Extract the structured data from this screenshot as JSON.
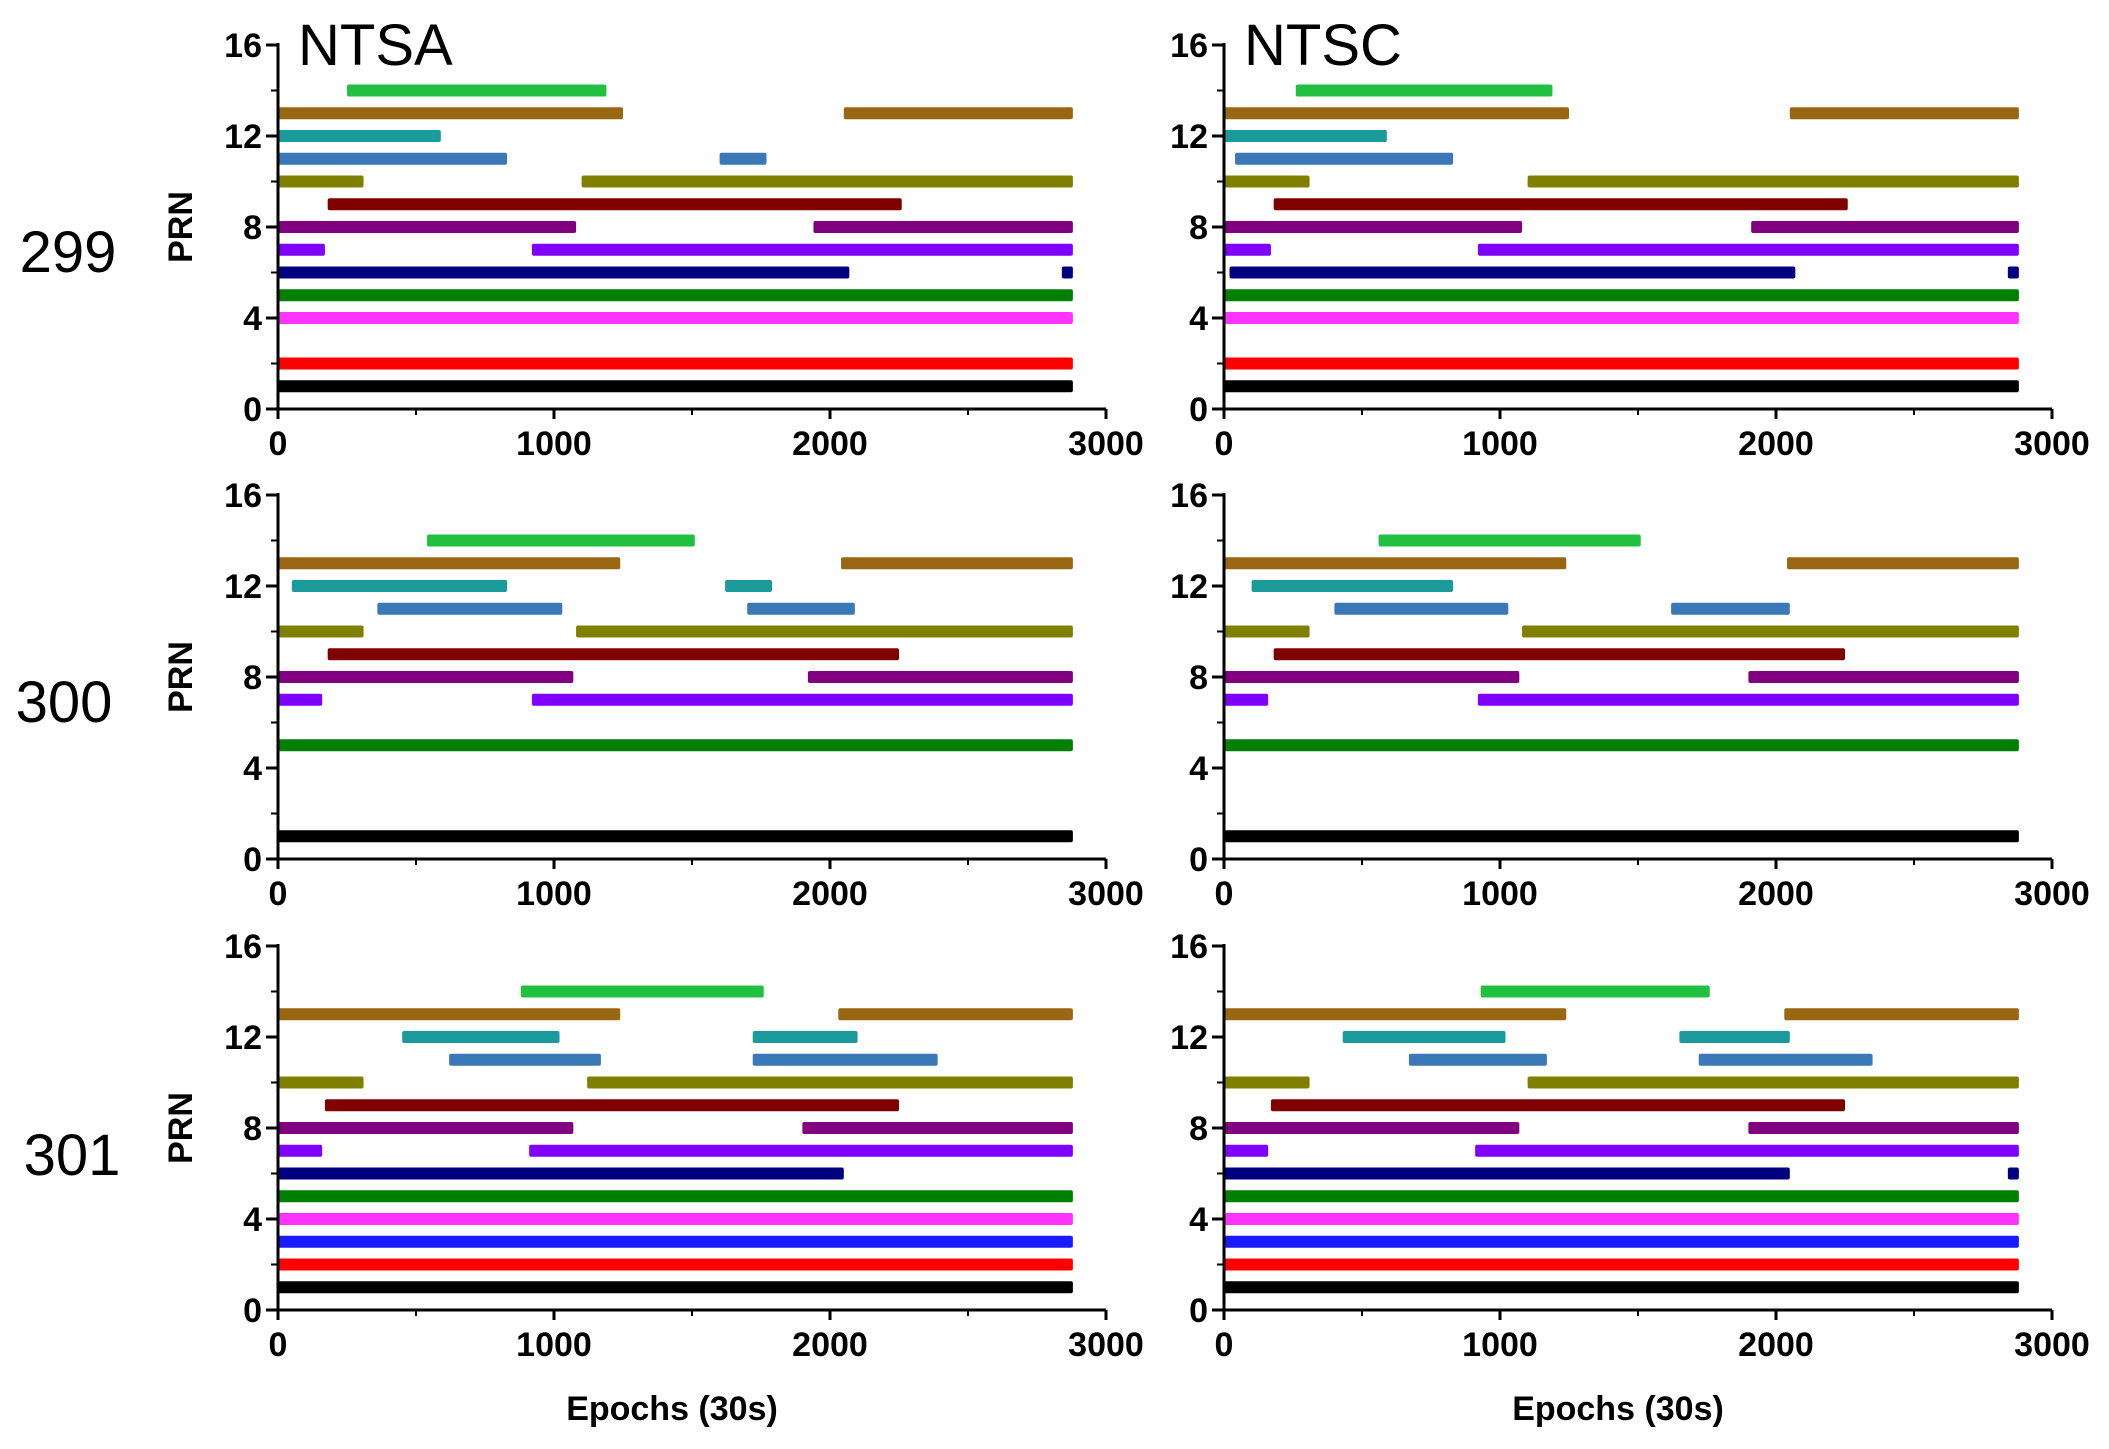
{
  "figure": {
    "row_labels": [
      "299",
      "300",
      "301"
    ],
    "column_titles": [
      "NTSA",
      "NTSC"
    ]
  },
  "prn_colors": {
    "1": "#000000",
    "2": "#ff0000",
    "3": "#1a1aff",
    "4": "#ff33ff",
    "5": "#008000",
    "6": "#000080",
    "7": "#8000ff",
    "8": "#800080",
    "9": "#800000",
    "10": "#808000",
    "11": "#3a78b8",
    "12": "#1a9a9a",
    "13": "#996611",
    "14": "#22c040"
  },
  "chart_data": [
    {
      "type": "timeline",
      "title": "NTSA",
      "row_label": "299",
      "xlabel": "",
      "ylabel": "PRN",
      "xlim": [
        0,
        3000
      ],
      "ylim": [
        0,
        16
      ],
      "xticks": [
        "0",
        "1000",
        "2000",
        "3000"
      ],
      "yticks": [
        "0",
        "4",
        "8",
        "12",
        "16"
      ],
      "series": [
        {
          "prn": 1,
          "segments": [
            [
              0,
              2880
            ]
          ]
        },
        {
          "prn": 2,
          "segments": [
            [
              0,
              2880
            ]
          ]
        },
        {
          "prn": 4,
          "segments": [
            [
              0,
              2880
            ]
          ]
        },
        {
          "prn": 5,
          "segments": [
            [
              0,
              2880
            ]
          ]
        },
        {
          "prn": 6,
          "segments": [
            [
              0,
              2070
            ],
            [
              2840,
              2880
            ]
          ]
        },
        {
          "prn": 7,
          "segments": [
            [
              0,
              170
            ],
            [
              920,
              2880
            ]
          ]
        },
        {
          "prn": 8,
          "segments": [
            [
              0,
              1080
            ],
            [
              1940,
              2880
            ]
          ]
        },
        {
          "prn": 9,
          "segments": [
            [
              180,
              2260
            ]
          ]
        },
        {
          "prn": 10,
          "segments": [
            [
              0,
              310
            ],
            [
              1100,
              2880
            ]
          ]
        },
        {
          "prn": 11,
          "segments": [
            [
              0,
              830
            ],
            [
              1600,
              1770
            ]
          ]
        },
        {
          "prn": 12,
          "segments": [
            [
              0,
              590
            ]
          ]
        },
        {
          "prn": 13,
          "segments": [
            [
              0,
              1250
            ],
            [
              2050,
              2880
            ]
          ]
        },
        {
          "prn": 14,
          "segments": [
            [
              250,
              1190
            ]
          ]
        }
      ]
    },
    {
      "type": "timeline",
      "title": "NTSC",
      "row_label": "299",
      "xlabel": "",
      "ylabel": "",
      "xlim": [
        0,
        3000
      ],
      "ylim": [
        0,
        16
      ],
      "xticks": [
        "0",
        "1000",
        "2000",
        "3000"
      ],
      "yticks": [
        "0",
        "4",
        "8",
        "12",
        "16"
      ],
      "series": [
        {
          "prn": 1,
          "segments": [
            [
              0,
              2880
            ]
          ]
        },
        {
          "prn": 2,
          "segments": [
            [
              0,
              2880
            ]
          ]
        },
        {
          "prn": 4,
          "segments": [
            [
              0,
              2880
            ]
          ]
        },
        {
          "prn": 5,
          "segments": [
            [
              0,
              2880
            ]
          ]
        },
        {
          "prn": 6,
          "segments": [
            [
              20,
              2070
            ],
            [
              2840,
              2880
            ]
          ]
        },
        {
          "prn": 7,
          "segments": [
            [
              0,
              170
            ],
            [
              920,
              2880
            ]
          ]
        },
        {
          "prn": 8,
          "segments": [
            [
              0,
              1080
            ],
            [
              1910,
              2880
            ]
          ]
        },
        {
          "prn": 9,
          "segments": [
            [
              180,
              2260
            ]
          ]
        },
        {
          "prn": 10,
          "segments": [
            [
              0,
              310
            ],
            [
              1100,
              2880
            ]
          ]
        },
        {
          "prn": 11,
          "segments": [
            [
              40,
              830
            ]
          ]
        },
        {
          "prn": 12,
          "segments": [
            [
              0,
              590
            ]
          ]
        },
        {
          "prn": 13,
          "segments": [
            [
              0,
              1250
            ],
            [
              2050,
              2880
            ]
          ]
        },
        {
          "prn": 14,
          "segments": [
            [
              260,
              1190
            ]
          ]
        }
      ]
    },
    {
      "type": "timeline",
      "title": "",
      "row_label": "300",
      "xlabel": "",
      "ylabel": "PRN",
      "xlim": [
        0,
        3000
      ],
      "ylim": [
        0,
        16
      ],
      "xticks": [
        "0",
        "1000",
        "2000",
        "3000"
      ],
      "yticks": [
        "0",
        "4",
        "8",
        "12",
        "16"
      ],
      "series": [
        {
          "prn": 1,
          "segments": [
            [
              0,
              2880
            ]
          ]
        },
        {
          "prn": 5,
          "segments": [
            [
              0,
              2880
            ]
          ]
        },
        {
          "prn": 7,
          "segments": [
            [
              0,
              160
            ],
            [
              920,
              2880
            ]
          ]
        },
        {
          "prn": 8,
          "segments": [
            [
              0,
              1070
            ],
            [
              1920,
              2880
            ]
          ]
        },
        {
          "prn": 9,
          "segments": [
            [
              180,
              2250
            ]
          ]
        },
        {
          "prn": 10,
          "segments": [
            [
              0,
              310
            ],
            [
              1080,
              2880
            ]
          ]
        },
        {
          "prn": 11,
          "segments": [
            [
              360,
              1030
            ],
            [
              1700,
              2090
            ]
          ]
        },
        {
          "prn": 12,
          "segments": [
            [
              50,
              830
            ],
            [
              1620,
              1790
            ]
          ]
        },
        {
          "prn": 13,
          "segments": [
            [
              0,
              1240
            ],
            [
              2040,
              2880
            ]
          ]
        },
        {
          "prn": 14,
          "segments": [
            [
              540,
              1510
            ]
          ]
        }
      ]
    },
    {
      "type": "timeline",
      "title": "",
      "row_label": "300",
      "xlabel": "",
      "ylabel": "",
      "xlim": [
        0,
        3000
      ],
      "ylim": [
        0,
        16
      ],
      "xticks": [
        "0",
        "1000",
        "2000",
        "3000"
      ],
      "yticks": [
        "0",
        "4",
        "8",
        "12",
        "16"
      ],
      "series": [
        {
          "prn": 1,
          "segments": [
            [
              0,
              2880
            ]
          ]
        },
        {
          "prn": 5,
          "segments": [
            [
              0,
              2880
            ]
          ]
        },
        {
          "prn": 7,
          "segments": [
            [
              0,
              160
            ],
            [
              920,
              2880
            ]
          ]
        },
        {
          "prn": 8,
          "segments": [
            [
              0,
              1070
            ],
            [
              1900,
              2880
            ]
          ]
        },
        {
          "prn": 9,
          "segments": [
            [
              180,
              2250
            ]
          ]
        },
        {
          "prn": 10,
          "segments": [
            [
              0,
              310
            ],
            [
              1080,
              2880
            ]
          ]
        },
        {
          "prn": 11,
          "segments": [
            [
              400,
              1030
            ],
            [
              1620,
              2050
            ]
          ]
        },
        {
          "prn": 12,
          "segments": [
            [
              100,
              830
            ]
          ]
        },
        {
          "prn": 13,
          "segments": [
            [
              0,
              1240
            ],
            [
              2040,
              2880
            ]
          ]
        },
        {
          "prn": 14,
          "segments": [
            [
              560,
              1510
            ]
          ]
        }
      ]
    },
    {
      "type": "timeline",
      "title": "",
      "row_label": "301",
      "xlabel": "Epochs (30s)",
      "ylabel": "PRN",
      "xlim": [
        0,
        3000
      ],
      "ylim": [
        0,
        16
      ],
      "xticks": [
        "0",
        "1000",
        "2000",
        "3000"
      ],
      "yticks": [
        "0",
        "4",
        "8",
        "12",
        "16"
      ],
      "series": [
        {
          "prn": 1,
          "segments": [
            [
              0,
              2880
            ]
          ]
        },
        {
          "prn": 2,
          "segments": [
            [
              0,
              2880
            ]
          ]
        },
        {
          "prn": 3,
          "segments": [
            [
              0,
              2880
            ]
          ]
        },
        {
          "prn": 4,
          "segments": [
            [
              0,
              2880
            ]
          ]
        },
        {
          "prn": 5,
          "segments": [
            [
              0,
              2880
            ]
          ]
        },
        {
          "prn": 6,
          "segments": [
            [
              0,
              2050
            ]
          ]
        },
        {
          "prn": 7,
          "segments": [
            [
              0,
              160
            ],
            [
              910,
              2880
            ]
          ]
        },
        {
          "prn": 8,
          "segments": [
            [
              0,
              1070
            ],
            [
              1900,
              2880
            ]
          ]
        },
        {
          "prn": 9,
          "segments": [
            [
              170,
              2250
            ]
          ]
        },
        {
          "prn": 10,
          "segments": [
            [
              0,
              310
            ],
            [
              1120,
              2880
            ]
          ]
        },
        {
          "prn": 11,
          "segments": [
            [
              620,
              1170
            ],
            [
              1720,
              2390
            ]
          ]
        },
        {
          "prn": 12,
          "segments": [
            [
              450,
              1020
            ],
            [
              1720,
              2100
            ]
          ]
        },
        {
          "prn": 13,
          "segments": [
            [
              0,
              1240
            ],
            [
              2030,
              2880
            ]
          ]
        },
        {
          "prn": 14,
          "segments": [
            [
              880,
              1760
            ]
          ]
        }
      ]
    },
    {
      "type": "timeline",
      "title": "",
      "row_label": "301",
      "xlabel": "Epochs (30s)",
      "ylabel": "",
      "xlim": [
        0,
        3000
      ],
      "ylim": [
        0,
        16
      ],
      "xticks": [
        "0",
        "1000",
        "2000",
        "3000"
      ],
      "yticks": [
        "0",
        "4",
        "8",
        "12",
        "16"
      ],
      "series": [
        {
          "prn": 1,
          "segments": [
            [
              0,
              2880
            ]
          ]
        },
        {
          "prn": 2,
          "segments": [
            [
              0,
              2880
            ]
          ]
        },
        {
          "prn": 3,
          "segments": [
            [
              0,
              2880
            ]
          ]
        },
        {
          "prn": 4,
          "segments": [
            [
              0,
              2880
            ]
          ]
        },
        {
          "prn": 5,
          "segments": [
            [
              0,
              2880
            ]
          ]
        },
        {
          "prn": 6,
          "segments": [
            [
              0,
              2050
            ],
            [
              2840,
              2880
            ]
          ]
        },
        {
          "prn": 7,
          "segments": [
            [
              0,
              160
            ],
            [
              910,
              2880
            ]
          ]
        },
        {
          "prn": 8,
          "segments": [
            [
              0,
              1070
            ],
            [
              1900,
              2880
            ]
          ]
        },
        {
          "prn": 9,
          "segments": [
            [
              170,
              2250
            ]
          ]
        },
        {
          "prn": 10,
          "segments": [
            [
              0,
              310
            ],
            [
              1100,
              2880
            ]
          ]
        },
        {
          "prn": 11,
          "segments": [
            [
              670,
              1170
            ],
            [
              1720,
              2350
            ]
          ]
        },
        {
          "prn": 12,
          "segments": [
            [
              430,
              1020
            ],
            [
              1650,
              2050
            ]
          ]
        },
        {
          "prn": 13,
          "segments": [
            [
              0,
              1240
            ],
            [
              2030,
              2880
            ]
          ]
        },
        {
          "prn": 14,
          "segments": [
            [
              930,
              1760
            ]
          ]
        }
      ]
    }
  ]
}
